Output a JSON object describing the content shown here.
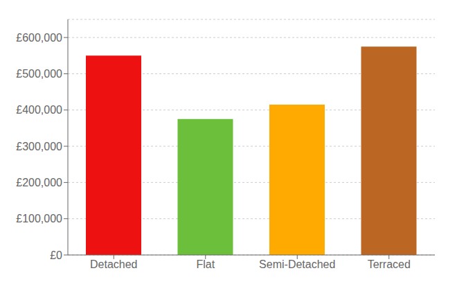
{
  "chart_data": {
    "type": "bar",
    "categories": [
      "Detached",
      "Flat",
      "Semi-Detached",
      "Terraced"
    ],
    "values": [
      550000,
      375000,
      415000,
      575000
    ],
    "colors": [
      "#ee1111",
      "#6cbf3a",
      "#ffaa00",
      "#bb6622"
    ],
    "ylim": [
      0,
      650000
    ],
    "yticks": [
      {
        "value": 0,
        "label": "£0"
      },
      {
        "value": 100000,
        "label": "£100,000"
      },
      {
        "value": 200000,
        "label": "£200,000"
      },
      {
        "value": 300000,
        "label": "£300,000"
      },
      {
        "value": 400000,
        "label": "£400,000"
      },
      {
        "value": 500000,
        "label": "£500,000"
      },
      {
        "value": 600000,
        "label": "£600,000"
      }
    ],
    "grid": true
  }
}
